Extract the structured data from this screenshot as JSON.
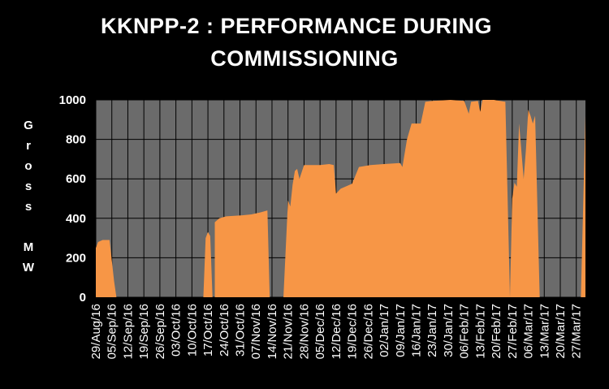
{
  "chart_data": {
    "type": "area",
    "title_lines": [
      "KKNPP-2 :  PERFORMANCE DURING",
      "COMMISSIONING"
    ],
    "ylabel_chars": [
      "G",
      "r",
      "o",
      "s",
      "s",
      "",
      "M",
      "W"
    ],
    "ylim": [
      0,
      1000
    ],
    "yticks": [
      0,
      200,
      400,
      600,
      800,
      1000
    ],
    "grid": true,
    "x_start": "2016-08-29",
    "x_end": "2017-03-31",
    "xticks": [
      "29/Aug/16",
      "05/Sep/16",
      "12/Sep/16",
      "19/Sep/16",
      "26/Sep/16",
      "03/Oct/16",
      "10/Oct/16",
      "17/Oct/16",
      "24/Oct/16",
      "31/Oct/16",
      "07/Nov/16",
      "14/Nov/16",
      "21/Nov/16",
      "28/Nov/16",
      "05/Dec/16",
      "12/Dec/16",
      "19/Dec/16",
      "26/Dec/16",
      "02/Jan/17",
      "09/Jan/17",
      "16/Jan/17",
      "23/Jan/17",
      "30/Jan/17",
      "06/Feb/17",
      "13/Feb/17",
      "20/Feb/17",
      "27/Feb/17",
      "06/Mar/17",
      "13/Mar/17",
      "20/Mar/17",
      "27/Mar/17"
    ],
    "series": [
      {
        "color": "#f79646",
        "points": [
          [
            "2016-08-29",
            0
          ],
          [
            "2016-08-29",
            250
          ],
          [
            "2016-08-30",
            280
          ],
          [
            "2016-09-01",
            290
          ],
          [
            "2016-09-04",
            290
          ],
          [
            "2016-09-06",
            80
          ],
          [
            "2016-09-07",
            0
          ],
          [
            "2016-10-15",
            0
          ],
          [
            "2016-10-16",
            300
          ],
          [
            "2016-10-17",
            330
          ],
          [
            "2016-10-18",
            310
          ],
          [
            "2016-10-19",
            0
          ],
          [
            "2016-10-20",
            0
          ],
          [
            "2016-10-20",
            380
          ],
          [
            "2016-10-22",
            400
          ],
          [
            "2016-10-25",
            410
          ],
          [
            "2016-11-01",
            415
          ],
          [
            "2016-11-05",
            420
          ],
          [
            "2016-11-09",
            430
          ],
          [
            "2016-11-12",
            440
          ],
          [
            "2016-11-13",
            0
          ],
          [
            "2016-11-19",
            0
          ],
          [
            "2016-11-21",
            490
          ],
          [
            "2016-11-22",
            460
          ],
          [
            "2016-11-23",
            570
          ],
          [
            "2016-11-24",
            640
          ],
          [
            "2016-11-25",
            650
          ],
          [
            "2016-11-26",
            600
          ],
          [
            "2016-11-28",
            670
          ],
          [
            "2016-12-05",
            670
          ],
          [
            "2016-12-09",
            675
          ],
          [
            "2016-12-11",
            670
          ],
          [
            "2016-12-12",
            525
          ],
          [
            "2016-12-14",
            550
          ],
          [
            "2016-12-19",
            575
          ],
          [
            "2016-12-22",
            660
          ],
          [
            "2016-12-27",
            670
          ],
          [
            "2017-01-02",
            675
          ],
          [
            "2017-01-09",
            680
          ],
          [
            "2017-01-10",
            660
          ],
          [
            "2017-01-12",
            800
          ],
          [
            "2017-01-14",
            880
          ],
          [
            "2017-01-18",
            880
          ],
          [
            "2017-01-20",
            990
          ],
          [
            "2017-01-23",
            995
          ],
          [
            "2017-01-31",
            1000
          ],
          [
            "2017-02-06",
            995
          ],
          [
            "2017-02-08",
            930
          ],
          [
            "2017-02-09",
            990
          ],
          [
            "2017-02-12",
            995
          ],
          [
            "2017-02-13",
            940
          ],
          [
            "2017-02-14",
            1000
          ],
          [
            "2017-02-19",
            1000
          ],
          [
            "2017-02-24",
            990
          ],
          [
            "2017-02-26",
            0
          ],
          [
            "2017-02-27",
            500
          ],
          [
            "2017-02-28",
            580
          ],
          [
            "2017-03-01",
            560
          ],
          [
            "2017-03-02",
            880
          ],
          [
            "2017-03-04",
            600
          ],
          [
            "2017-03-05",
            750
          ],
          [
            "2017-03-06",
            950
          ],
          [
            "2017-03-07",
            920
          ],
          [
            "2017-03-08",
            880
          ],
          [
            "2017-03-09",
            920
          ],
          [
            "2017-03-11",
            0
          ],
          [
            "2017-03-29",
            0
          ],
          [
            "2017-03-31",
            920
          ]
        ]
      }
    ]
  }
}
